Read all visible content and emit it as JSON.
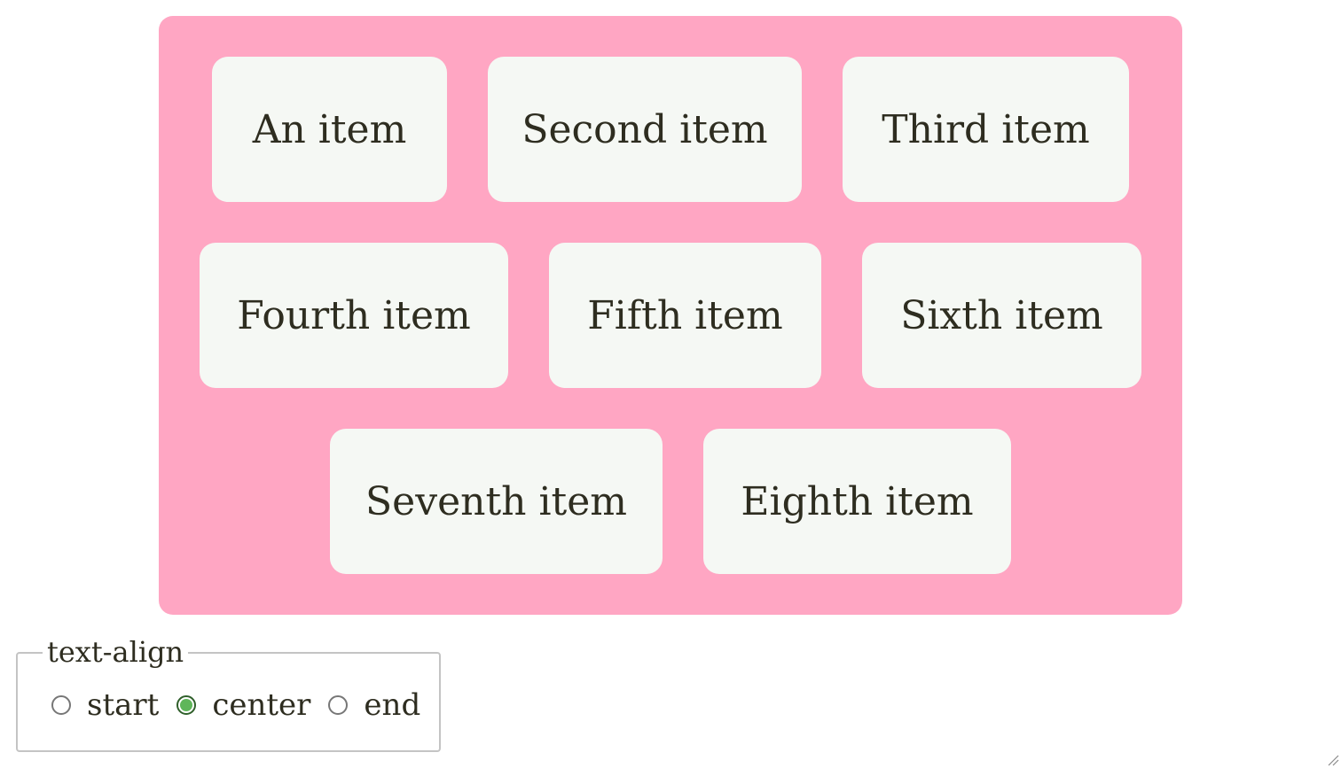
{
  "items": [
    [
      "An item",
      "Second item",
      "Third item"
    ],
    [
      "Fourth item",
      "Fifth item",
      "Sixth item"
    ],
    [
      "Seventh item",
      "Eighth item"
    ]
  ],
  "controls": {
    "legend": "text-align",
    "options": [
      {
        "label": "start",
        "checked": false
      },
      {
        "label": "center",
        "checked": true
      },
      {
        "label": "end",
        "checked": false
      }
    ]
  },
  "colors": {
    "container_bg": "#ffa6c3",
    "item_bg": "#f5f8f4",
    "radio_checked": "#5fb65a"
  }
}
